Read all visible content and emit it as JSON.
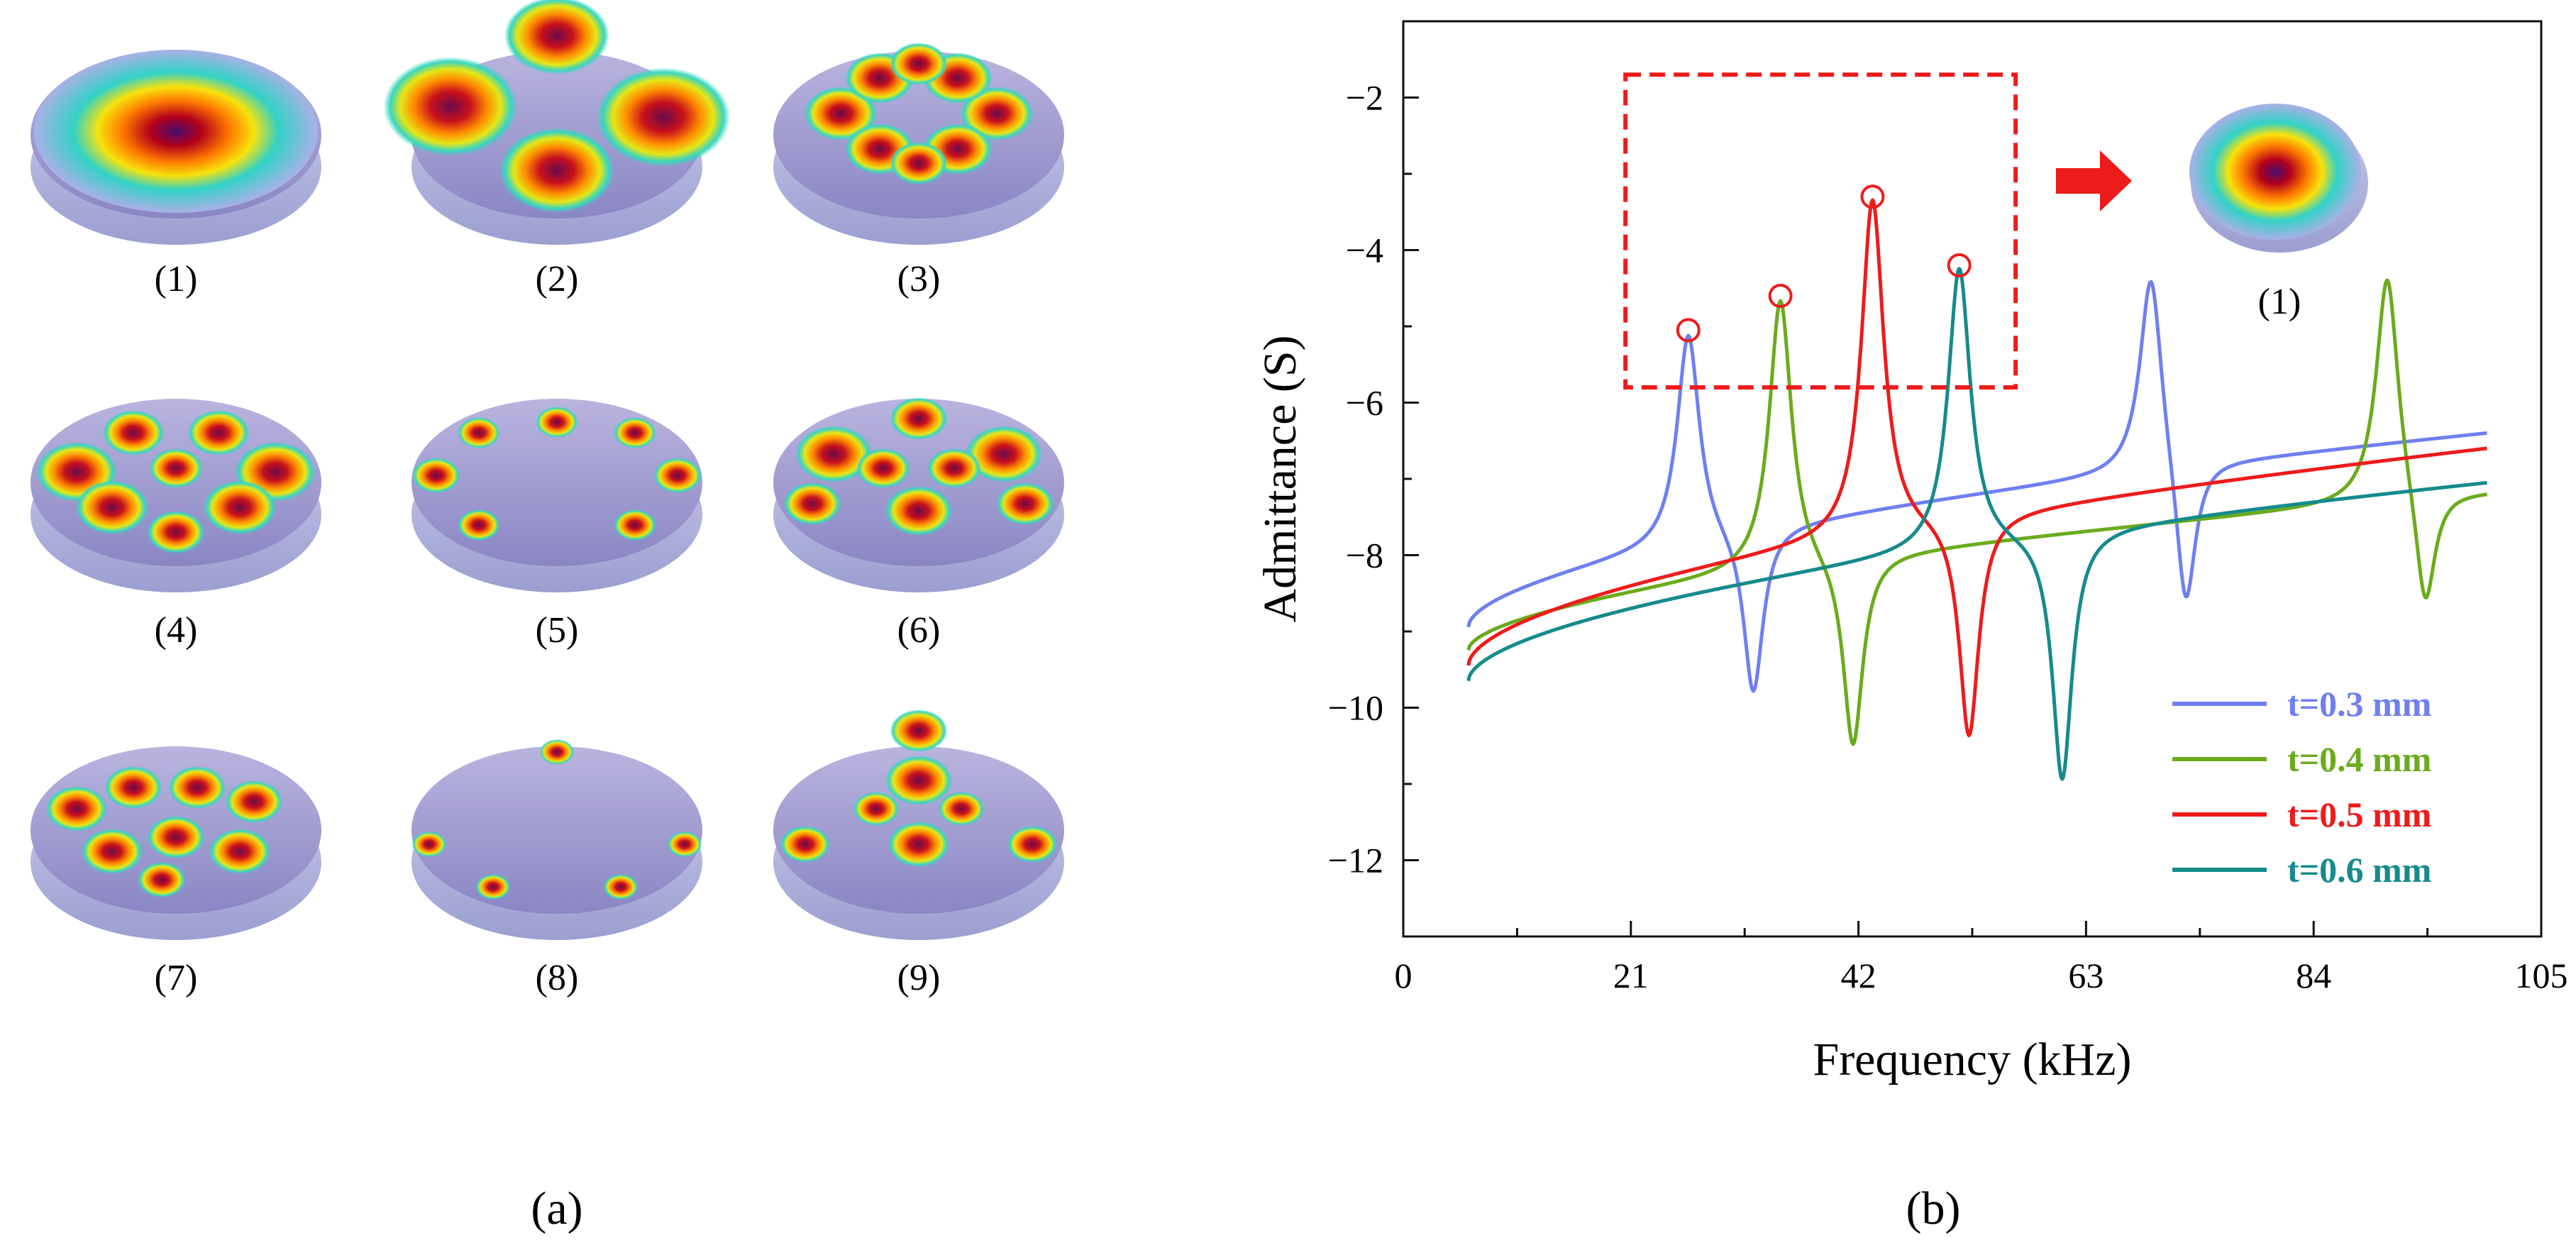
{
  "panel_a": {
    "label": "(a)",
    "modes": [
      "(1)",
      "(2)",
      "(3)",
      "(4)",
      "(5)",
      "(6)",
      "(7)",
      "(8)",
      "(9)"
    ]
  },
  "panel_b": {
    "label": "(b)"
  },
  "chart_data": {
    "type": "line",
    "title": "",
    "xlabel": "Frequency (kHz)",
    "ylabel": "Admittance (S)",
    "xlim": [
      0,
      105
    ],
    "ylim": [
      -13,
      -1
    ],
    "xticks": [
      0,
      21,
      42,
      63,
      84,
      105
    ],
    "yticks": [
      -12,
      -10,
      -8,
      -6,
      -4,
      -2
    ],
    "ytick_labels": [
      "−12",
      "−10",
      "−8",
      "−6",
      "−4",
      "−2"
    ],
    "grid": false,
    "legend_position": "bottom-right",
    "inset_label": "(1)",
    "highlight_box": {
      "x": [
        20.5,
        56.5
      ],
      "y": [
        -5.8,
        -1.7
      ]
    },
    "series": [
      {
        "name": "t=0.3 mm",
        "color": "#6f7ff0",
        "fr": [
          26.3,
          69
        ],
        "peak": [
          -5.05,
          -4.2
        ],
        "fa": [
          32.3,
          72.2
        ],
        "valley": [
          -9.9,
          -8.9
        ],
        "start": -8.95,
        "end": -6.4
      },
      {
        "name": "t=0.4 mm",
        "color": "#6aab1c",
        "fr": [
          34.8,
          90.8
        ],
        "peak": [
          -4.6,
          -4.25
        ],
        "fa": [
          41.5,
          94.3
        ],
        "valley": [
          -10.6,
          -8.9
        ],
        "start": -9.25,
        "end": -7.2
      },
      {
        "name": "t=0.5 mm",
        "color": "#ee1b1b",
        "fr": [
          43.3
        ],
        "peak": [
          -3.3
        ],
        "fa": [
          52.2
        ],
        "valley": [
          -10.45
        ],
        "start": -9.45,
        "end": -6.6
      },
      {
        "name": "t=0.6 mm",
        "color": "#168a8c",
        "fr": [
          51.3
        ],
        "peak": [
          -4.2
        ],
        "fa": [
          60.8
        ],
        "valley": [
          -11.0
        ],
        "start": -9.65,
        "end": -7.05
      }
    ],
    "highlighted_peaks": [
      {
        "x": 26.3,
        "y": -5.05
      },
      {
        "x": 34.8,
        "y": -4.6
      },
      {
        "x": 43.3,
        "y": -3.3
      },
      {
        "x": 51.3,
        "y": -4.2
      }
    ]
  }
}
